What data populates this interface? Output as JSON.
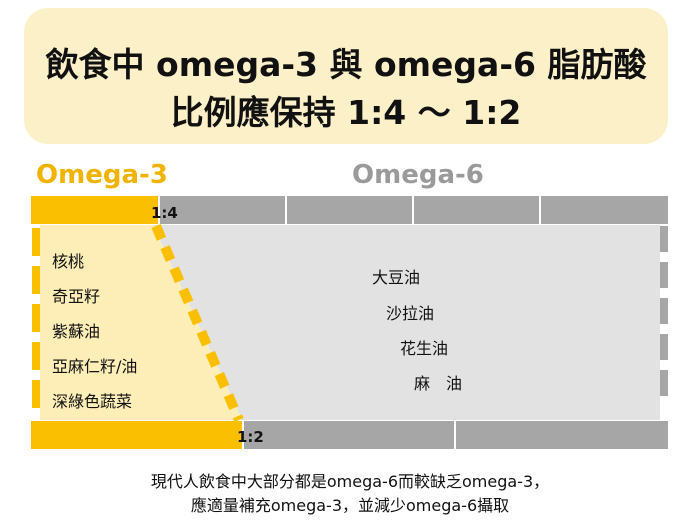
{
  "title": {
    "line1": "飲食中 omega-3 與 omega-6 脂肪酸",
    "line2": "比例應保持 1:4 ～ 1:2"
  },
  "headers": {
    "omega3": "Omega-3",
    "omega6": "Omega-6"
  },
  "ratios": {
    "top": "1:4",
    "bottom": "1:2"
  },
  "omega3_foods": [
    "核桃",
    "奇亞籽",
    "紫蘇油",
    "亞麻仁籽/油",
    "深綠色蔬菜"
  ],
  "omega6_foods": [
    "大豆油",
    "沙拉油",
    "花生油",
    "麻　油"
  ],
  "caption": {
    "line1": "現代人飲食中大部分都是omega-6而較缺乏omega-3，",
    "line2": "應適量補充omega-3，並減少omega-6攝取"
  },
  "colors": {
    "omega3": "#fac000",
    "omega3_light": "#fdeeb8",
    "omega6": "#a6a6a6",
    "omega6_light": "#e2e2e2",
    "title_bg": "#fcf0c8"
  }
}
